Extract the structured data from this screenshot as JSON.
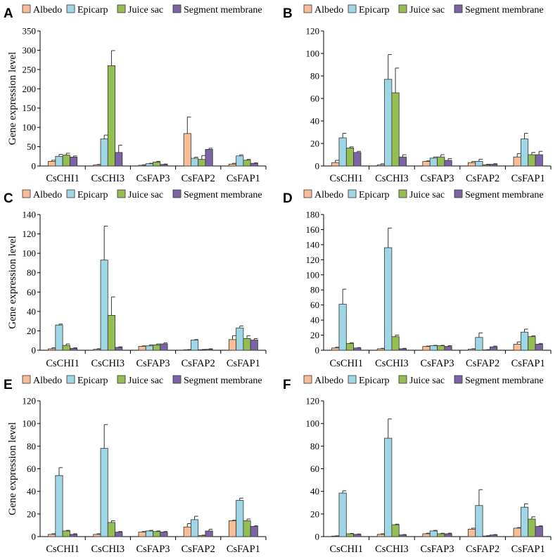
{
  "figure": {
    "legend_labels": [
      "Albedo",
      "Epicarp",
      "Juice sac",
      "Segment membrane"
    ],
    "series_colors": [
      "#f8bd94",
      "#9fd6e5",
      "#94bd52",
      "#7b63a5"
    ],
    "bar_edge_color": "#333333"
  },
  "chart_data": [
    {
      "panel": "A",
      "type": "bar",
      "categories": [
        "CsCHI1",
        "CsCHI3",
        "CsFAP3",
        "CsFAP2",
        "CsFAP1"
      ],
      "ylabel": "Gene expression level",
      "ylim": [
        0,
        350
      ],
      "yticks": [
        0,
        50,
        100,
        150,
        200,
        250,
        300,
        350
      ],
      "series": [
        {
          "name": "Albedo",
          "values": [
            12,
            3,
            2,
            84,
            5
          ],
          "errors": [
            3,
            1,
            1,
            43,
            2
          ]
        },
        {
          "name": "Epicarp",
          "values": [
            25,
            70,
            6,
            20,
            26
          ],
          "errors": [
            5,
            10,
            1,
            3,
            3
          ]
        },
        {
          "name": "Juice sac",
          "values": [
            28,
            260,
            10,
            17,
            15
          ],
          "errors": [
            5,
            39,
            2,
            10,
            2
          ]
        },
        {
          "name": "Segment membrane",
          "values": [
            23,
            35,
            4,
            43,
            7
          ],
          "errors": [
            3,
            19,
            1,
            3,
            1
          ]
        }
      ]
    },
    {
      "panel": "B",
      "type": "bar",
      "categories": [
        "CsCHI1",
        "CsCHI3",
        "CsFAP3",
        "CsFAP2",
        "CsFAP1"
      ],
      "ylabel": "",
      "ylim": [
        0,
        120
      ],
      "yticks": [
        0,
        20,
        40,
        60,
        80,
        100,
        120
      ],
      "series": [
        {
          "name": "Albedo",
          "values": [
            3,
            1,
            4,
            3,
            8
          ],
          "errors": [
            2,
            1,
            0.5,
            1,
            3
          ]
        },
        {
          "name": "Epicarp",
          "values": [
            25,
            77,
            7,
            4,
            24
          ],
          "errors": [
            4,
            22,
            1,
            2,
            5
          ]
        },
        {
          "name": "Juice sac",
          "values": [
            16,
            65,
            8,
            1,
            10
          ],
          "errors": [
            1,
            22,
            2,
            0.5,
            2
          ]
        },
        {
          "name": "Segment membrane",
          "values": [
            12,
            8,
            5,
            1.5,
            10
          ],
          "errors": [
            1,
            2,
            1.5,
            0.5,
            3
          ]
        }
      ]
    },
    {
      "panel": "C",
      "type": "bar",
      "categories": [
        "CsCHI1",
        "CsCHI3",
        "CsFAP3",
        "CsFAP2",
        "CsFAP1"
      ],
      "ylabel": "Gene expression level",
      "ylim": [
        0,
        140
      ],
      "yticks": [
        0,
        20,
        40,
        60,
        80,
        100,
        120,
        140
      ],
      "series": [
        {
          "name": "Albedo",
          "values": [
            1.5,
            1,
            4,
            0.5,
            11
          ],
          "errors": [
            1,
            0.5,
            0.5,
            0.2,
            4
          ]
        },
        {
          "name": "Epicarp",
          "values": [
            26,
            93,
            4.5,
            10.5,
            23
          ],
          "errors": [
            1,
            35,
            1,
            0.5,
            2
          ]
        },
        {
          "name": "Juice sac",
          "values": [
            5,
            36,
            5.5,
            0.5,
            12
          ],
          "errors": [
            1.5,
            19,
            1,
            0.3,
            3
          ]
        },
        {
          "name": "Segment membrane",
          "values": [
            2,
            3,
            6.5,
            1,
            10.5
          ],
          "errors": [
            0.5,
            0.5,
            1,
            0.5,
            1.5
          ]
        }
      ]
    },
    {
      "panel": "D",
      "type": "bar",
      "categories": [
        "CsCHI1",
        "CsCHI3",
        "CsFAP3",
        "CsFAP2",
        "CsFAP1"
      ],
      "ylabel": "",
      "ylim": [
        0,
        180
      ],
      "yticks": [
        0,
        20,
        40,
        60,
        80,
        100,
        120,
        140,
        160,
        180
      ],
      "series": [
        {
          "name": "Albedo",
          "values": [
            3,
            2,
            5,
            1.5,
            8
          ],
          "errors": [
            1,
            0.5,
            0.5,
            0.5,
            3
          ]
        },
        {
          "name": "Epicarp",
          "values": [
            61,
            136,
            6,
            17,
            24
          ],
          "errors": [
            20,
            26,
            0.5,
            6,
            4
          ]
        },
        {
          "name": "Juice sac",
          "values": [
            9,
            18,
            6,
            0.5,
            18
          ],
          "errors": [
            1,
            2,
            0.5,
            0.3,
            1
          ]
        },
        {
          "name": "Segment membrane",
          "values": [
            3,
            2,
            5,
            4.5,
            8
          ],
          "errors": [
            0.5,
            0.5,
            1,
            1,
            1
          ]
        }
      ]
    },
    {
      "panel": "E",
      "type": "bar",
      "categories": [
        "CsCHI1",
        "CsCHI3",
        "CsFAP3",
        "CsFAP2",
        "CsFAP1"
      ],
      "ylabel": "Gene expression level",
      "ylim": [
        0,
        120
      ],
      "yticks": [
        0,
        20,
        40,
        60,
        80,
        100,
        120
      ],
      "series": [
        {
          "name": "Albedo",
          "values": [
            2,
            2,
            4,
            8.5,
            14
          ],
          "errors": [
            0.5,
            0.5,
            0.5,
            3,
            0.5
          ]
        },
        {
          "name": "Epicarp",
          "values": [
            54,
            78,
            5,
            15,
            32
          ],
          "errors": [
            7,
            21,
            0.5,
            3,
            2
          ]
        },
        {
          "name": "Juice sac",
          "values": [
            5,
            12.5,
            4.5,
            1,
            14
          ],
          "errors": [
            0.5,
            1.5,
            0.5,
            0.3,
            1.5
          ]
        },
        {
          "name": "Segment membrane",
          "values": [
            2,
            4,
            4,
            5,
            9
          ],
          "errors": [
            0.5,
            0.5,
            0.5,
            1.5,
            0.5
          ]
        }
      ]
    },
    {
      "panel": "F",
      "type": "bar",
      "categories": [
        "CsCHI1",
        "CsCHI3",
        "CsFAP3",
        "CsFAP2",
        "CsFAP1"
      ],
      "ylabel": "",
      "ylim": [
        0,
        120
      ],
      "yticks": [
        0,
        20,
        40,
        60,
        80,
        100,
        120
      ],
      "series": [
        {
          "name": "Albedo",
          "values": [
            0.5,
            2,
            2.5,
            6.5,
            7.5
          ],
          "errors": [
            0.2,
            0.5,
            0.5,
            1,
            0.5
          ]
        },
        {
          "name": "Epicarp",
          "values": [
            38.5,
            87,
            5,
            27.5,
            26
          ],
          "errors": [
            2,
            17,
            0.5,
            14,
            3
          ]
        },
        {
          "name": "Juice sac",
          "values": [
            2.5,
            10.5,
            2.5,
            0.5,
            15.5
          ],
          "errors": [
            0.3,
            0.5,
            0.5,
            0.3,
            2
          ]
        },
        {
          "name": "Segment membrane",
          "values": [
            2,
            1.5,
            2.5,
            1.5,
            9
          ],
          "errors": [
            0.3,
            0.3,
            0.5,
            0.3,
            0.5
          ]
        }
      ]
    }
  ]
}
